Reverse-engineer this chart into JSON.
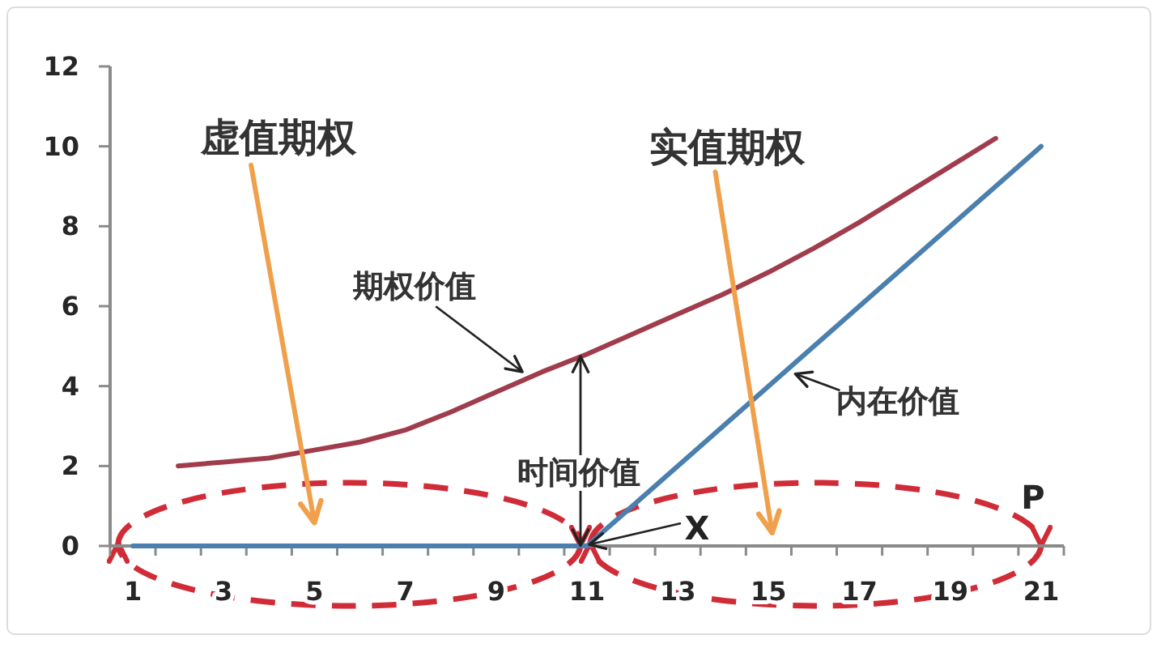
{
  "chart_data": {
    "type": "line",
    "xlabel": "P",
    "series": [
      {
        "name": "期权价值",
        "color": "#a03c4c",
        "x": [
          2,
          3,
          4,
          5,
          6,
          7,
          8,
          9,
          10,
          11,
          12,
          13,
          14,
          15,
          16,
          17,
          18,
          19,
          20
        ],
        "values": [
          2.0,
          2.1,
          2.2,
          2.4,
          2.6,
          2.9,
          3.35,
          3.85,
          4.35,
          4.8,
          5.3,
          5.8,
          6.3,
          6.85,
          7.45,
          8.1,
          8.8,
          9.5,
          10.2
        ]
      },
      {
        "name": "内在价值",
        "color": "#4a7fae",
        "x": [
          1,
          11,
          21
        ],
        "values": [
          0,
          0,
          10
        ]
      }
    ],
    "xlim": [
      0.5,
      21.5
    ],
    "xticks": [
      {
        "value": 0.5,
        "label": null
      },
      1,
      {
        "value": 1.5,
        "label": null
      },
      {
        "value": 2.5,
        "label": null
      },
      3,
      {
        "value": 3.5,
        "label": null
      },
      {
        "value": 4.5,
        "label": null
      },
      5,
      {
        "value": 5.5,
        "label": null
      },
      {
        "value": 6.5,
        "label": null
      },
      7,
      {
        "value": 7.5,
        "label": null
      },
      {
        "value": 8.5,
        "label": null
      },
      9,
      {
        "value": 9.5,
        "label": null
      },
      {
        "value": 10.5,
        "label": null
      },
      11,
      {
        "value": 11.5,
        "label": null
      },
      {
        "value": 12.5,
        "label": null
      },
      13,
      {
        "value": 13.5,
        "label": null
      },
      {
        "value": 14.5,
        "label": null
      },
      15,
      {
        "value": 15.5,
        "label": null
      },
      {
        "value": 16.5,
        "label": null
      },
      17,
      {
        "value": 17.5,
        "label": null
      },
      {
        "value": 18.5,
        "label": null
      },
      19,
      {
        "value": 19.5,
        "label": null
      },
      {
        "value": 20.5,
        "label": null
      },
      21,
      {
        "value": 21.5,
        "label": null
      }
    ],
    "ylim": [
      0,
      12
    ],
    "yticks": [
      0,
      2,
      4,
      6,
      8,
      10,
      12
    ],
    "annotations": [
      "虚值期权",
      "实值期权",
      {
        "text": "时间价值",
        "x": 11,
        "y": 4.8
      },
      {
        "text": "X",
        "x": 11,
        "y": 0
      }
    ]
  }
}
